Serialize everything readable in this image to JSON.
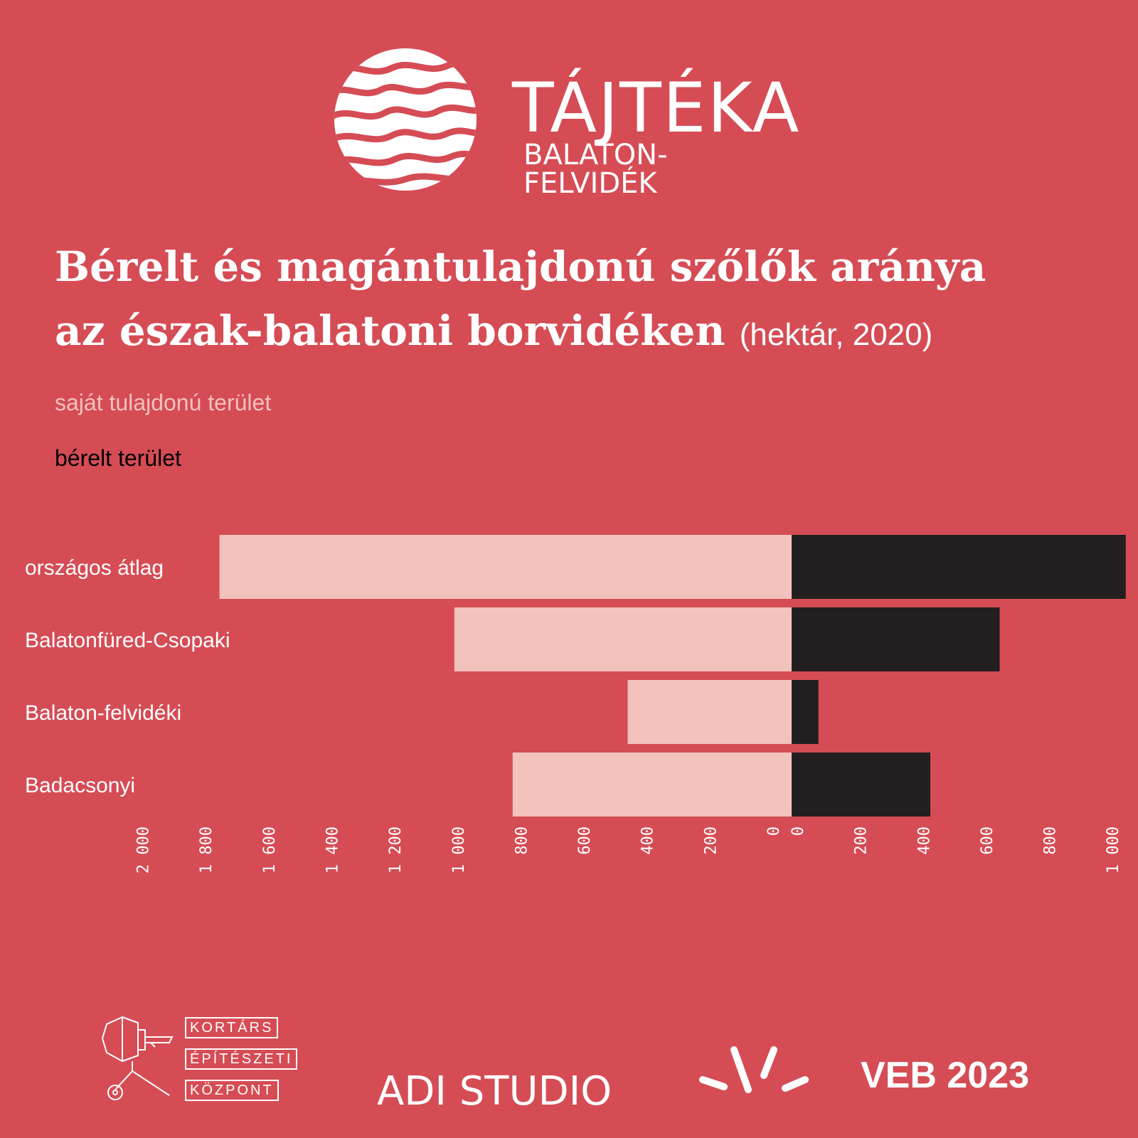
{
  "brand": {
    "name": "TÁJTÉKA",
    "sub": "BALATON-FELVIDÉK"
  },
  "title": {
    "line1": "Bérelt és magántulajdonú szőlők aránya",
    "line2": "az észak-balatoni borvidéken",
    "unit": "(hektár, 2020)"
  },
  "legend": {
    "own": "saját tulajdonú terület",
    "rented": "bérelt terület"
  },
  "footer": {
    "kez": [
      "KORTÁRS",
      "ÉPÍTÉSZETI",
      "KÖZPONT"
    ],
    "adi": "ADI STUDIO",
    "veb": "VEB 2023"
  },
  "colors": {
    "background": "#d54c55",
    "own": "#f2c2bc",
    "rented": "#231f20"
  },
  "chart_data": {
    "type": "bar",
    "orientation": "horizontal-diverging",
    "categories": [
      "országos átlag",
      "Balatonfüred-Csopaki",
      "Balaton-felvidéki",
      "Badacsonyi"
    ],
    "series": [
      {
        "name": "saját tulajdonú terület",
        "values": [
          1815,
          1070,
          520,
          885
        ]
      },
      {
        "name": "bérelt terület",
        "values": [
          1060,
          660,
          85,
          440
        ]
      }
    ],
    "left_axis": {
      "range": [
        0,
        2000
      ],
      "ticks": [
        "0",
        "200",
        "400",
        "600",
        "800",
        "1 000",
        "1 200",
        "1 400",
        "1 600",
        "1 800",
        "2 000"
      ]
    },
    "right_axis": {
      "range": [
        0,
        1000
      ],
      "ticks": [
        "0",
        "200",
        "400",
        "600",
        "800",
        "1 000"
      ]
    }
  }
}
